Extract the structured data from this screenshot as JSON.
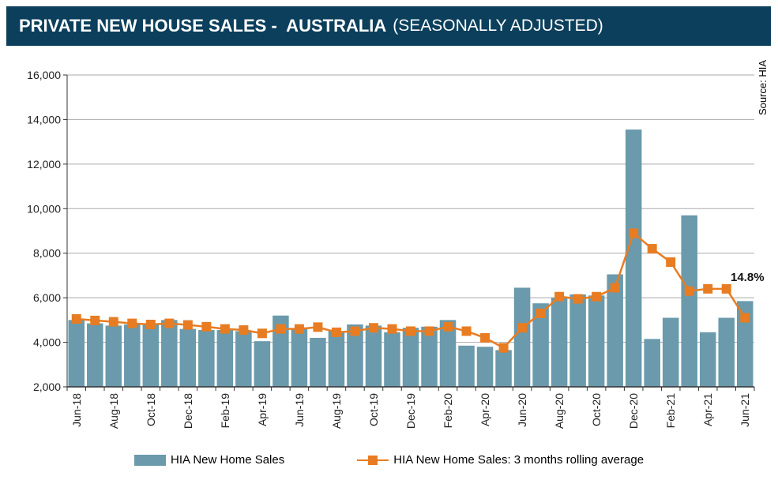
{
  "header": {
    "title": "PRIVATE NEW HOUSE SALES -  AUSTRALIA",
    "subtitle": "(SEASONALLY ADJUSTED)"
  },
  "source": "Source: HIA",
  "chart_data": {
    "type": "bar",
    "title": "PRIVATE NEW HOUSE SALES - AUSTRALIA (SEASONALLY ADJUSTED)",
    "categories": [
      "Jun-18",
      "Jul-18",
      "Aug-18",
      "Sep-18",
      "Oct-18",
      "Nov-18",
      "Dec-18",
      "Jan-19",
      "Feb-19",
      "Mar-19",
      "Apr-19",
      "May-19",
      "Jun-19",
      "Jul-19",
      "Aug-19",
      "Sep-19",
      "Oct-19",
      "Nov-19",
      "Dec-19",
      "Jan-20",
      "Feb-20",
      "Mar-20",
      "Apr-20",
      "May-20",
      "Jun-20",
      "Jul-20",
      "Aug-20",
      "Sep-20",
      "Oct-20",
      "Nov-20",
      "Dec-20",
      "Jan-21",
      "Feb-21",
      "Mar-21",
      "Apr-21",
      "May-21",
      "Jun-21"
    ],
    "tick_labels": [
      "Jun-18",
      "Aug-18",
      "Oct-18",
      "Dec-18",
      "Feb-19",
      "Apr-19",
      "Jun-19",
      "Aug-19",
      "Oct-19",
      "Dec-19",
      "Feb-20",
      "Apr-20",
      "Jun-20",
      "Aug-20",
      "Oct-20",
      "Dec-20",
      "Feb-21",
      "Apr-21",
      "Jun-21"
    ],
    "series": [
      {
        "name": "HIA New Home Sales",
        "type": "bar",
        "color": "#6a9aab",
        "values": [
          5000,
          4850,
          4750,
          4800,
          4800,
          5000,
          4600,
          4550,
          4550,
          4500,
          4050,
          5200,
          4600,
          4200,
          4500,
          4800,
          4750,
          4450,
          4650,
          4700,
          5000,
          3850,
          3800,
          3650,
          6450,
          5750,
          6000,
          6150,
          6100,
          7050,
          13550,
          4150,
          5100,
          9700,
          4450,
          5100,
          5850
        ]
      },
      {
        "name": "HIA New Home Sales: 3 months rolling average",
        "type": "line",
        "color": "#e87c22",
        "values": [
          5050,
          4980,
          4920,
          4850,
          4800,
          4850,
          4780,
          4700,
          4600,
          4550,
          4400,
          4600,
          4600,
          4680,
          4450,
          4500,
          4650,
          4600,
          4500,
          4500,
          4700,
          4500,
          4200,
          3750,
          4650,
          5300,
          6050,
          5950,
          6050,
          6450,
          8900,
          8200,
          7600,
          6300,
          6400,
          6400,
          5100
        ]
      }
    ],
    "ylim": [
      2000,
      16000
    ],
    "yticks": [
      "2,000",
      "4,000",
      "6,000",
      "8,000",
      "10,000",
      "12,000",
      "14,000",
      "16,000"
    ],
    "annotation": "14.8%",
    "grid": true,
    "legend": "bottom"
  }
}
